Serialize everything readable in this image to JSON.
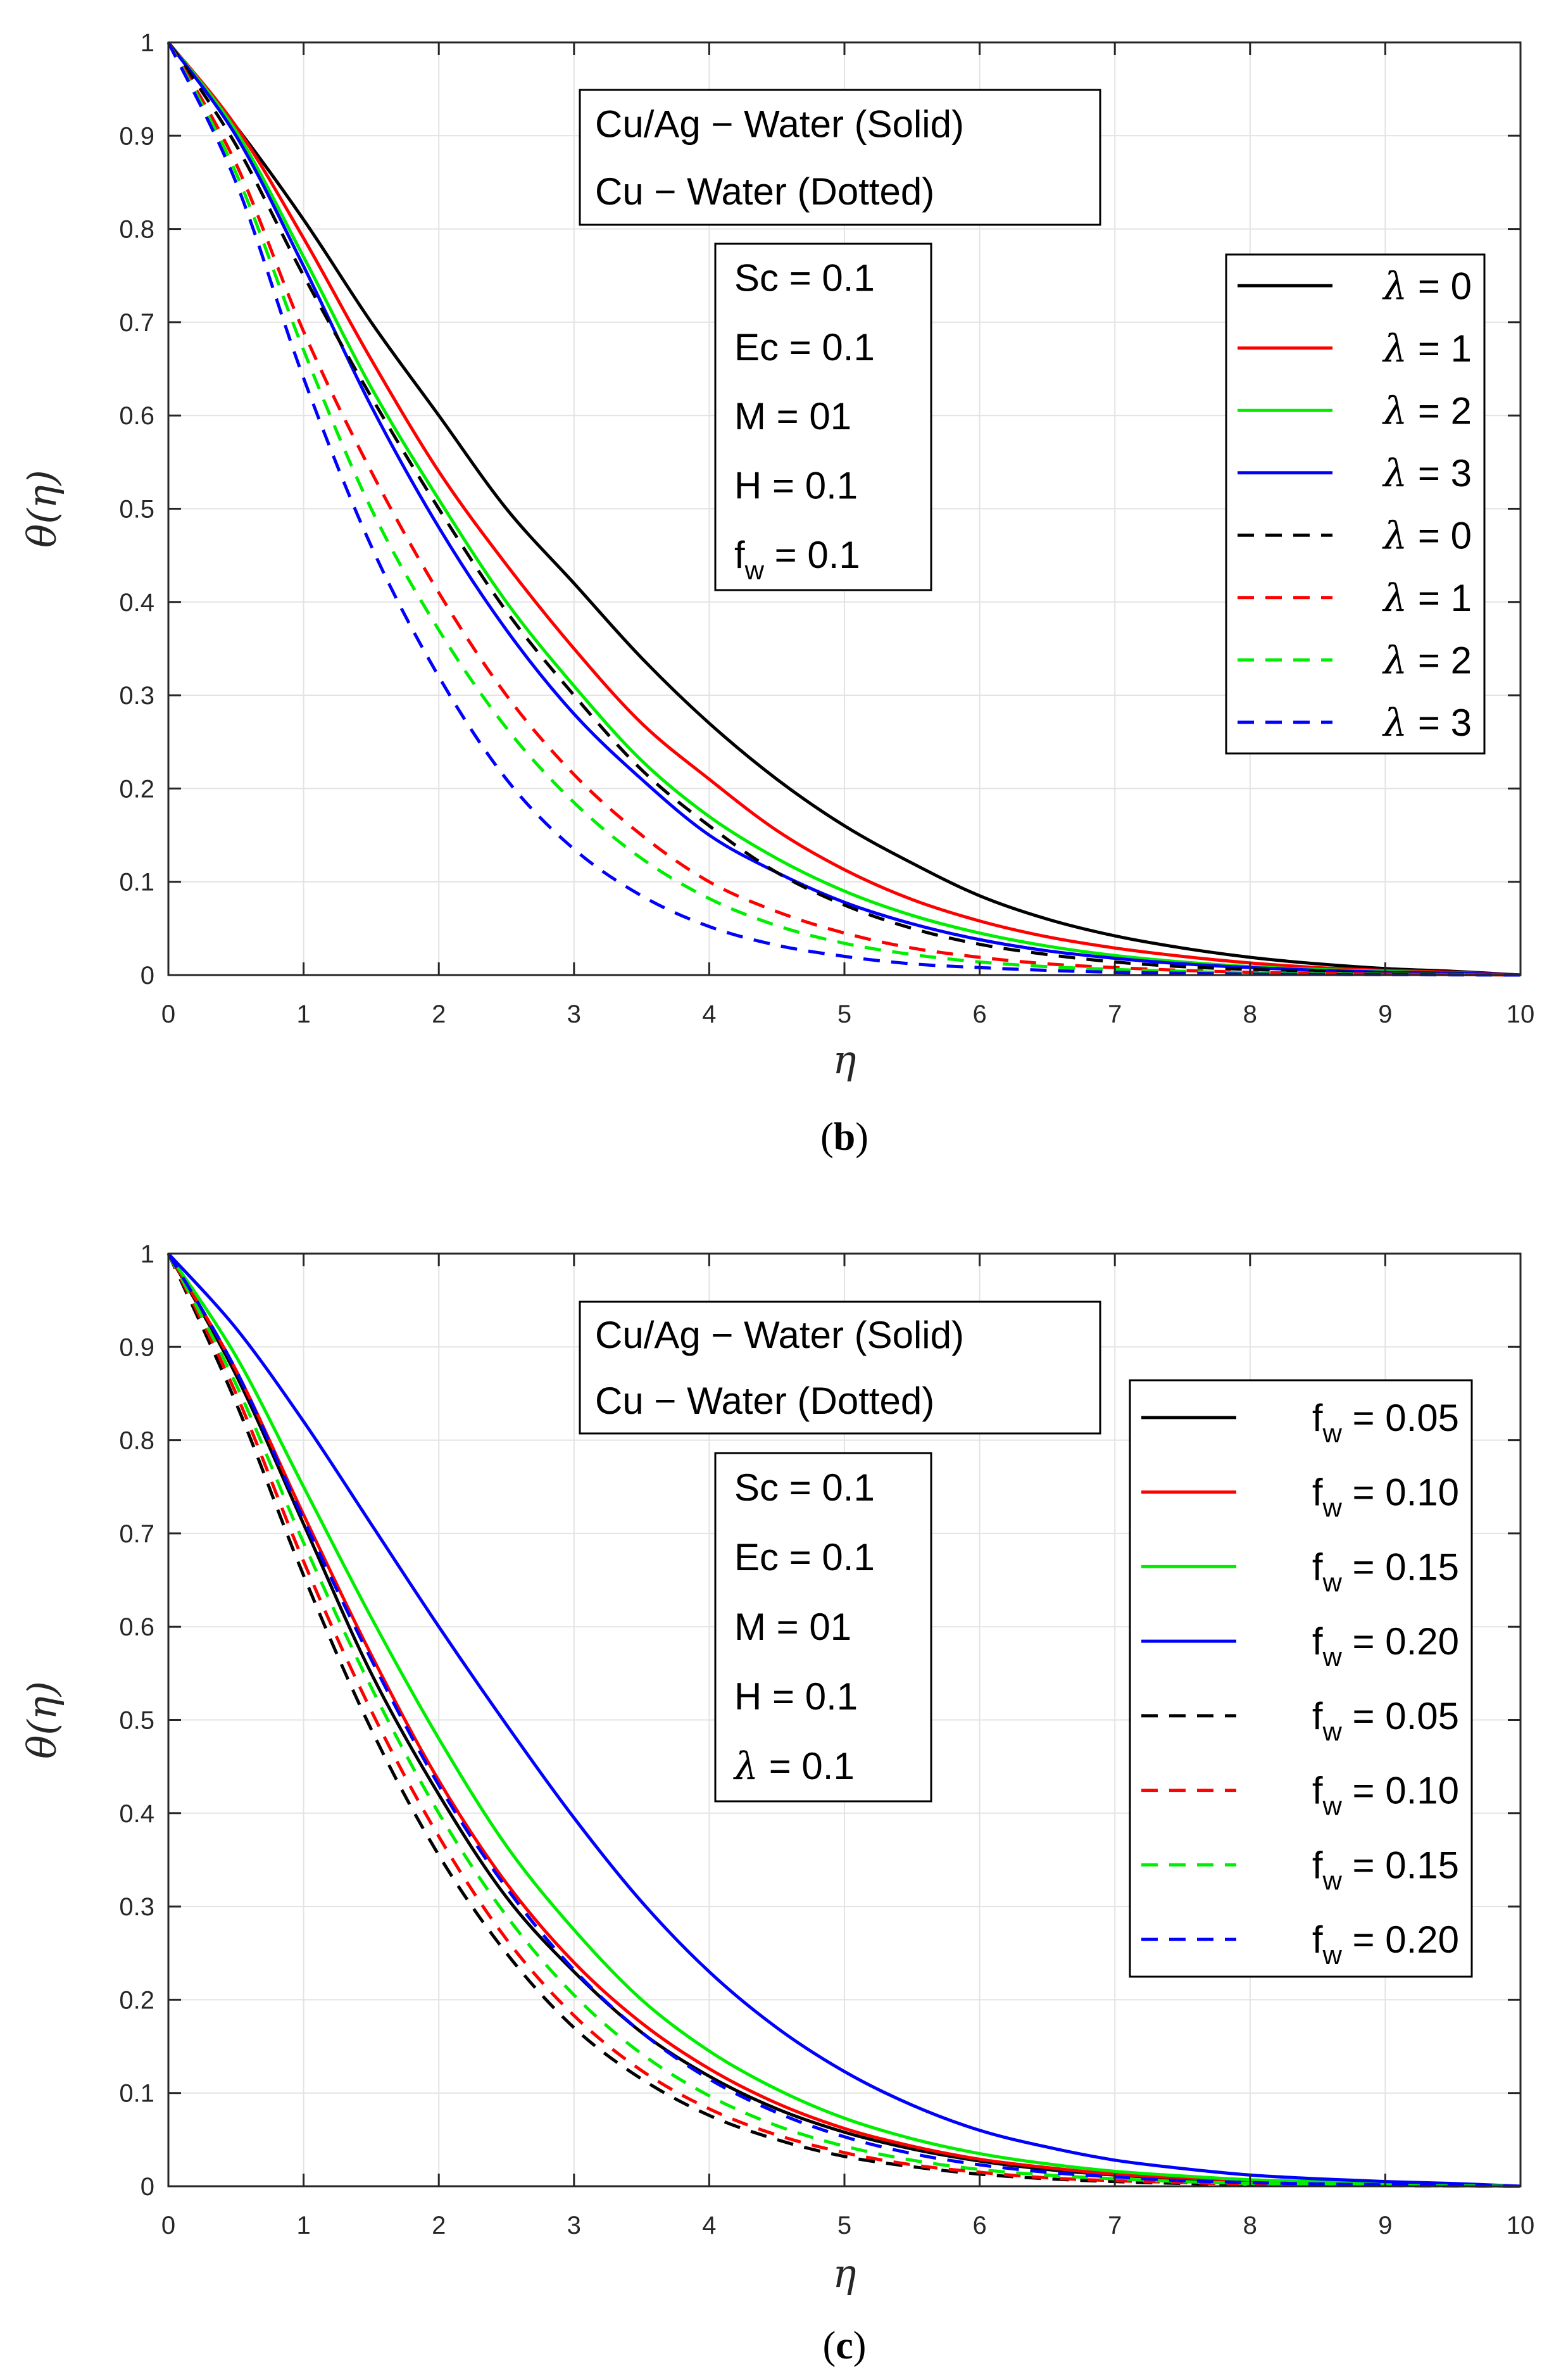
{
  "colors": {
    "black": "#000000",
    "red": "#ff0000",
    "green": "#00ee00",
    "blue": "#0000ff",
    "grid": "#e3e3e3",
    "axis": "#262626"
  },
  "chart_data": [
    {
      "type": "line",
      "panel_label": "b",
      "xlabel": "η",
      "ylabel": "θ(η)",
      "xlim": [
        0,
        10
      ],
      "ylim": [
        0,
        1
      ],
      "xticks": [
        "0",
        "1",
        "2",
        "3",
        "4",
        "5",
        "6",
        "7",
        "8",
        "9",
        "10"
      ],
      "yticks": [
        "0",
        "0.1",
        "0.2",
        "0.3",
        "0.4",
        "0.5",
        "0.6",
        "0.7",
        "0.8",
        "0.9",
        "1"
      ],
      "grid": true,
      "annotation_lines": [
        "Cu/Ag − Water (Solid)",
        "Cu − Water (Dotted)"
      ],
      "params": [
        {
          "text": "Sc = 0.1"
        },
        {
          "text": "Ec = 0.1"
        },
        {
          "text": "M = 01"
        },
        {
          "text": "H = 0.1"
        },
        {
          "base": "f",
          "sub": "w",
          "rest": " = 0.1"
        }
      ],
      "legend_placement": "right",
      "x": [
        0,
        0.5,
        1,
        1.5,
        2,
        2.5,
        3,
        3.5,
        4,
        4.5,
        5,
        5.5,
        6,
        6.5,
        7,
        7.5,
        8,
        8.5,
        9,
        9.5,
        10
      ],
      "series": [
        {
          "name": "λ = 0",
          "sym": "λ",
          "rest": " = 0",
          "color": "#000000",
          "style": "solid",
          "values": [
            1,
            0.91,
            0.81,
            0.7,
            0.6,
            0.5,
            0.42,
            0.34,
            0.27,
            0.21,
            0.16,
            0.12,
            0.085,
            0.06,
            0.042,
            0.029,
            0.019,
            0.012,
            0.007,
            0.004,
            0
          ]
        },
        {
          "name": "λ = 1",
          "sym": "λ",
          "rest": " = 1",
          "color": "#ff0000",
          "style": "solid",
          "values": [
            1,
            0.91,
            0.79,
            0.66,
            0.54,
            0.44,
            0.35,
            0.27,
            0.21,
            0.155,
            0.113,
            0.081,
            0.058,
            0.041,
            0.029,
            0.02,
            0.013,
            0.008,
            0.005,
            0.003,
            0
          ]
        },
        {
          "name": "λ = 2",
          "sym": "λ",
          "rest": " = 2",
          "color": "#00ee00",
          "style": "solid",
          "values": [
            1,
            0.905,
            0.77,
            0.63,
            0.51,
            0.4,
            0.31,
            0.23,
            0.17,
            0.125,
            0.09,
            0.064,
            0.045,
            0.031,
            0.021,
            0.014,
            0.009,
            0.006,
            0.004,
            0.002,
            0
          ]
        },
        {
          "name": "λ = 3",
          "sym": "λ",
          "rest": " = 3",
          "color": "#0000ff",
          "style": "solid",
          "values": [
            1,
            0.9,
            0.76,
            0.61,
            0.48,
            0.37,
            0.28,
            0.21,
            0.15,
            0.11,
            0.078,
            0.055,
            0.038,
            0.026,
            0.018,
            0.012,
            0.008,
            0.005,
            0.003,
            0.002,
            0
          ]
        },
        {
          "name": "λ = 0",
          "sym": "λ",
          "rest": " = 0",
          "color": "#000000",
          "style": "dashed",
          "values": [
            1,
            0.89,
            0.75,
            0.62,
            0.5,
            0.39,
            0.3,
            0.22,
            0.16,
            0.11,
            0.075,
            0.05,
            0.033,
            0.022,
            0.014,
            0.009,
            0.006,
            0.004,
            0.002,
            0.001,
            0
          ]
        },
        {
          "name": "λ = 1",
          "sym": "λ",
          "rest": " = 1",
          "color": "#ff0000",
          "style": "dashed",
          "values": [
            1,
            0.87,
            0.69,
            0.54,
            0.41,
            0.3,
            0.215,
            0.15,
            0.1,
            0.068,
            0.045,
            0.029,
            0.019,
            0.012,
            0.008,
            0.005,
            0.003,
            0.002,
            0.001,
            0.0005,
            0
          ]
        },
        {
          "name": "λ = 2",
          "sym": "λ",
          "rest": " = 2",
          "color": "#00ee00",
          "style": "dashed",
          "values": [
            1,
            0.86,
            0.67,
            0.5,
            0.37,
            0.265,
            0.185,
            0.125,
            0.082,
            0.053,
            0.034,
            0.022,
            0.014,
            0.009,
            0.006,
            0.004,
            0.002,
            0.0015,
            0.001,
            0.0005,
            0
          ]
        },
        {
          "name": "λ = 3",
          "sym": "λ",
          "rest": " = 3",
          "color": "#0000ff",
          "style": "dashed",
          "values": [
            1,
            0.85,
            0.64,
            0.46,
            0.32,
            0.21,
            0.135,
            0.085,
            0.052,
            0.032,
            0.02,
            0.012,
            0.008,
            0.005,
            0.003,
            0.002,
            0.001,
            0.0007,
            0.0004,
            0.0002,
            0
          ]
        }
      ]
    },
    {
      "type": "line",
      "panel_label": "c",
      "xlabel": "η",
      "ylabel": "θ(η)",
      "xlim": [
        0,
        10
      ],
      "ylim": [
        0,
        1
      ],
      "xticks": [
        "0",
        "1",
        "2",
        "3",
        "4",
        "5",
        "6",
        "7",
        "8",
        "9",
        "10"
      ],
      "yticks": [
        "0",
        "0.1",
        "0.2",
        "0.3",
        "0.4",
        "0.5",
        "0.6",
        "0.7",
        "0.8",
        "0.9",
        "1"
      ],
      "grid": true,
      "annotation_lines": [
        "Cu/Ag − Water (Solid)",
        "Cu − Water (Dotted)"
      ],
      "params": [
        {
          "text": "Sc = 0.1"
        },
        {
          "text": "Ec = 0.1"
        },
        {
          "text": "M = 01"
        },
        {
          "text": "H = 0.1"
        },
        {
          "greek": "λ",
          "rest": " = 0.1"
        }
      ],
      "legend_placement": "right",
      "x": [
        0,
        0.5,
        1,
        1.5,
        2,
        2.5,
        3,
        3.5,
        4,
        4.5,
        5,
        5.5,
        6,
        6.5,
        7,
        7.5,
        8,
        8.5,
        9,
        9.5,
        10
      ],
      "series": [
        {
          "name": "fw = 0.05",
          "base": "f",
          "sub": "w",
          "rest": " = 0.05",
          "color": "#000000",
          "style": "solid",
          "values": [
            1,
            0.87,
            0.71,
            0.55,
            0.42,
            0.31,
            0.23,
            0.165,
            0.118,
            0.083,
            0.058,
            0.04,
            0.027,
            0.018,
            0.012,
            0.008,
            0.005,
            0.003,
            0.002,
            0.001,
            0
          ]
        },
        {
          "name": "fw = 0.10",
          "base": "f",
          "sub": "w",
          "rest": " = 0.10",
          "color": "#ff0000",
          "style": "solid",
          "values": [
            1,
            0.875,
            0.72,
            0.57,
            0.435,
            0.325,
            0.24,
            0.175,
            0.126,
            0.089,
            0.062,
            0.043,
            0.029,
            0.02,
            0.013,
            0.009,
            0.006,
            0.004,
            0.002,
            0.001,
            0
          ]
        },
        {
          "name": "fw = 0.15",
          "base": "f",
          "sub": "w",
          "rest": " = 0.15",
          "color": "#00ee00",
          "style": "solid",
          "values": [
            1,
            0.89,
            0.75,
            0.61,
            0.48,
            0.365,
            0.275,
            0.2,
            0.145,
            0.104,
            0.073,
            0.051,
            0.035,
            0.024,
            0.016,
            0.011,
            0.007,
            0.005,
            0.003,
            0.002,
            0
          ]
        },
        {
          "name": "fw = 0.20",
          "base": "f",
          "sub": "w",
          "rest": " = 0.20",
          "color": "#0000ff",
          "style": "solid",
          "values": [
            1,
            0.92,
            0.82,
            0.71,
            0.6,
            0.495,
            0.395,
            0.305,
            0.23,
            0.17,
            0.123,
            0.087,
            0.06,
            0.042,
            0.028,
            0.019,
            0.012,
            0.008,
            0.005,
            0.003,
            0
          ]
        },
        {
          "name": "fw = 0.05",
          "base": "f",
          "sub": "w",
          "rest": " = 0.05",
          "color": "#000000",
          "style": "dashed",
          "values": [
            1,
            0.84,
            0.655,
            0.49,
            0.355,
            0.25,
            0.17,
            0.115,
            0.076,
            0.05,
            0.032,
            0.021,
            0.013,
            0.008,
            0.005,
            0.003,
            0.002,
            0.001,
            0.0007,
            0.0003,
            0
          ]
        },
        {
          "name": "fw = 0.10",
          "base": "f",
          "sub": "w",
          "rest": " = 0.10",
          "color": "#ff0000",
          "style": "dashed",
          "values": [
            1,
            0.85,
            0.67,
            0.51,
            0.375,
            0.265,
            0.183,
            0.124,
            0.083,
            0.055,
            0.036,
            0.023,
            0.015,
            0.009,
            0.006,
            0.004,
            0.002,
            0.0015,
            0.0009,
            0.0004,
            0
          ]
        },
        {
          "name": "fw = 0.15",
          "base": "f",
          "sub": "w",
          "rest": " = 0.15",
          "color": "#00ee00",
          "style": "dashed",
          "values": [
            1,
            0.86,
            0.69,
            0.535,
            0.4,
            0.29,
            0.205,
            0.142,
            0.097,
            0.065,
            0.043,
            0.028,
            0.018,
            0.012,
            0.008,
            0.005,
            0.003,
            0.002,
            0.001,
            0.0005,
            0
          ]
        },
        {
          "name": "fw = 0.20",
          "base": "f",
          "sub": "w",
          "rest": " = 0.20",
          "color": "#0000ff",
          "style": "dashed",
          "values": [
            1,
            0.875,
            0.715,
            0.565,
            0.43,
            0.32,
            0.232,
            0.165,
            0.115,
            0.079,
            0.053,
            0.035,
            0.023,
            0.015,
            0.01,
            0.006,
            0.004,
            0.0025,
            0.0015,
            0.0007,
            0
          ]
        }
      ]
    }
  ]
}
